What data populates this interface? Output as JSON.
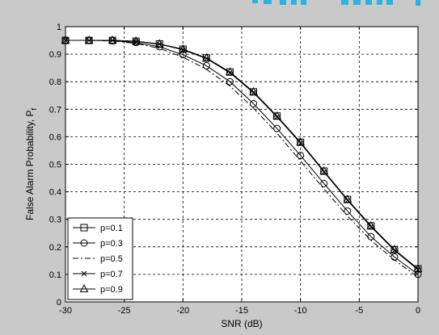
{
  "chart_data": {
    "type": "line",
    "title": "",
    "xlabel": "SNR (dB)",
    "ylabel": "False Alarm Probability, P",
    "ylabel_subscript": "f",
    "xlim": [
      -30,
      0
    ],
    "ylim": [
      0,
      1
    ],
    "x_ticks": [
      -30,
      -25,
      -20,
      -15,
      -10,
      -5,
      0
    ],
    "y_ticks": [
      0,
      0.1,
      0.2,
      0.3,
      0.4,
      0.5,
      0.6,
      0.7,
      0.8,
      0.9,
      1
    ],
    "grid": true,
    "legend_position": "bottom-left",
    "x": [
      -30,
      -28,
      -26,
      -24,
      -22,
      -20,
      -18,
      -16,
      -14,
      -12,
      -10,
      -8,
      -6,
      -4,
      -2,
      0
    ],
    "series": [
      {
        "name": "p=0.1",
        "marker": "square",
        "dash": "solid",
        "values": [
          0.95,
          0.95,
          0.95,
          0.947,
          0.937,
          0.918,
          0.886,
          0.835,
          0.763,
          0.675,
          0.58,
          0.475,
          0.372,
          0.276,
          0.19,
          0.12
        ]
      },
      {
        "name": "p=0.3",
        "marker": "circle",
        "dash": "solid",
        "values": [
          0.95,
          0.95,
          0.949,
          0.942,
          0.927,
          0.898,
          0.858,
          0.8,
          0.72,
          0.63,
          0.532,
          0.43,
          0.33,
          0.237,
          0.163,
          0.1
        ]
      },
      {
        "name": "p=0.5",
        "marker": "none",
        "dash": "dashdot",
        "values": [
          0.95,
          0.95,
          0.948,
          0.939,
          0.921,
          0.889,
          0.845,
          0.784,
          0.704,
          0.613,
          0.512,
          0.41,
          0.312,
          0.224,
          0.152,
          0.09
        ]
      },
      {
        "name": "p=0.7",
        "marker": "x",
        "dash": "solid",
        "values": [
          0.95,
          0.95,
          0.95,
          0.946,
          0.936,
          0.916,
          0.884,
          0.832,
          0.76,
          0.672,
          0.577,
          0.472,
          0.369,
          0.273,
          0.187,
          0.117
        ]
      },
      {
        "name": "p=0.9",
        "marker": "triangle",
        "dash": "solid",
        "values": [
          0.95,
          0.95,
          0.95,
          0.947,
          0.937,
          0.918,
          0.886,
          0.835,
          0.763,
          0.675,
          0.58,
          0.475,
          0.372,
          0.276,
          0.19,
          0.12
        ]
      }
    ],
    "colors": {
      "frame_bg": "#c9c9c9",
      "plot_bg": "#ffffff",
      "line": "#000000",
      "top_strip_text": "#2ab2e3"
    }
  }
}
